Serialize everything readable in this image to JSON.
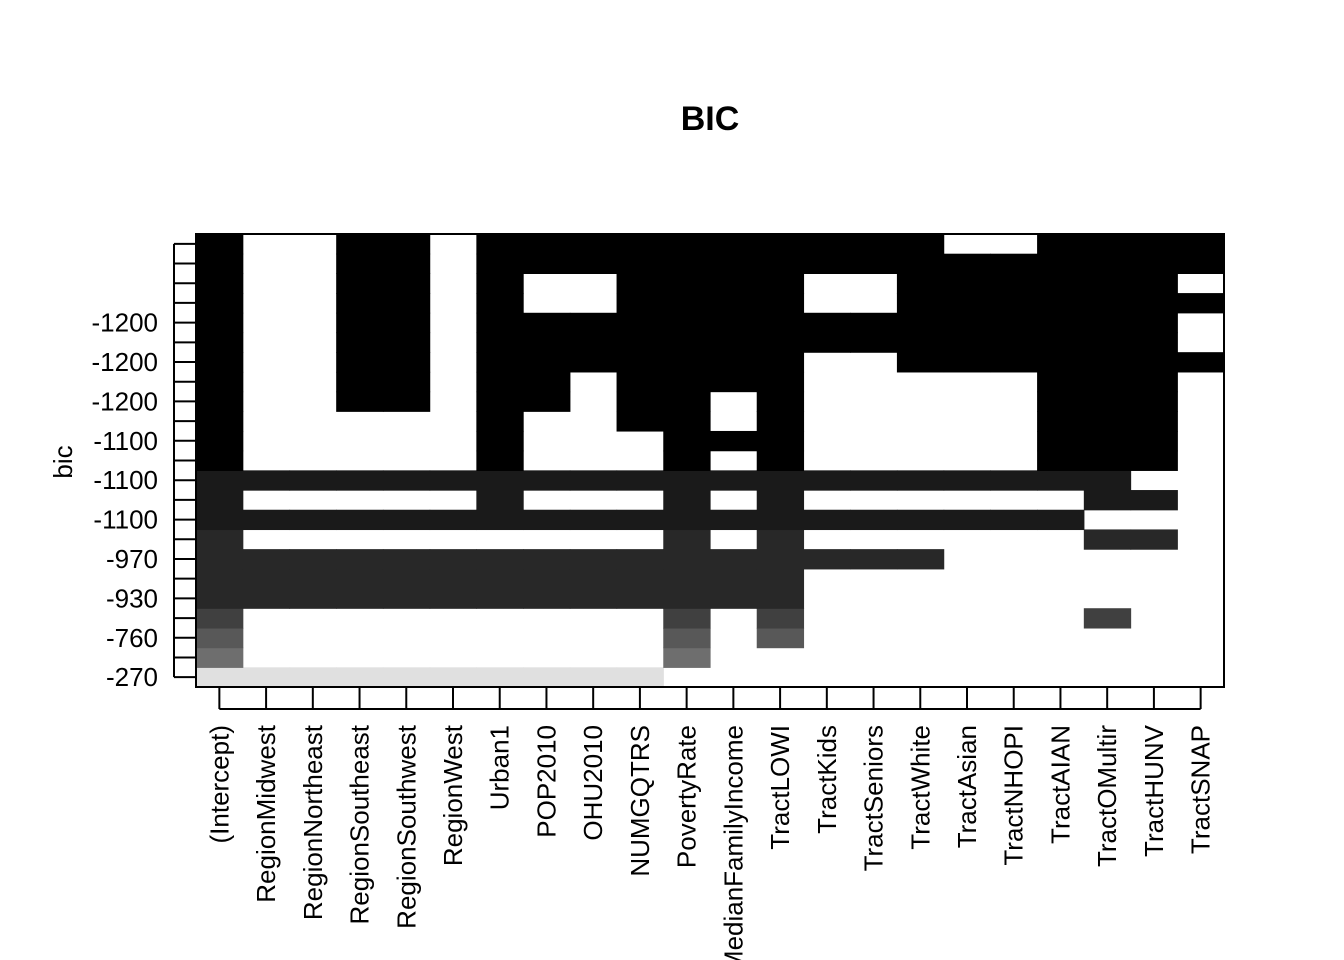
{
  "chart_data": {
    "type": "heatmap",
    "title": "BIC",
    "ylabel": "bic",
    "xlabel": "",
    "variables": [
      "(Intercept)",
      "RegionMidwest",
      "RegionNortheast",
      "RegionSoutheast",
      "RegionSouthwest",
      "RegionWest",
      "Urban1",
      "POP2010",
      "OHU2010",
      "NUMGQTRS",
      "PovertyRate",
      "MedianFamilyIncome",
      "TractLOWI",
      "TractKids",
      "TractSeniors",
      "TractWhite",
      "TractAsian",
      "TractNHOPI",
      "TractAIAN",
      "TractOMultir",
      "TractHUNV",
      "TractSNAP"
    ],
    "bic_axis_labels": [
      "-270",
      "-760",
      "-930",
      "-970",
      "-1100",
      "-1100",
      "-1100",
      "-1200",
      "-1200",
      "-1200"
    ],
    "shade_colors": [
      "#e0e0e0",
      "#6e6e6e",
      "#585858",
      "#404040",
      "#282828",
      "#1a1a1a",
      "#000000"
    ],
    "models": [
      {
        "row_start": 0,
        "row_end": 1,
        "shade": 0,
        "vars": [
          0,
          1,
          2,
          3,
          4,
          5,
          6,
          7,
          8,
          9
        ]
      },
      {
        "row_start": 1,
        "row_end": 2,
        "shade": 1,
        "vars": [
          0,
          10
        ]
      },
      {
        "row_start": 2,
        "row_end": 3,
        "shade": 2,
        "vars": [
          0,
          10,
          12
        ]
      },
      {
        "row_start": 3,
        "row_end": 4,
        "shade": 3,
        "vars": [
          0,
          10,
          12,
          19
        ]
      },
      {
        "row_start": 4,
        "row_end": 6,
        "shade": 4,
        "vars": [
          0,
          1,
          2,
          3,
          4,
          5,
          6,
          7,
          8,
          9,
          10,
          11,
          12
        ]
      },
      {
        "row_start": 6,
        "row_end": 7,
        "shade": 4,
        "vars": [
          0,
          1,
          2,
          3,
          4,
          5,
          6,
          7,
          8,
          9,
          10,
          11,
          12,
          13,
          14,
          15
        ]
      },
      {
        "row_start": 7,
        "row_end": 8,
        "shade": 4,
        "vars": [
          0,
          10,
          12,
          19,
          20
        ]
      },
      {
        "row_start": 8,
        "row_end": 9,
        "shade": 5,
        "vars": [
          0,
          1,
          2,
          3,
          4,
          5,
          6,
          7,
          8,
          9,
          10,
          11,
          12,
          13,
          14,
          15,
          16,
          17,
          18
        ]
      },
      {
        "row_start": 9,
        "row_end": 10,
        "shade": 5,
        "vars": [
          0,
          6,
          10,
          12,
          19,
          20
        ]
      },
      {
        "row_start": 10,
        "row_end": 11,
        "shade": 5,
        "vars": [
          0,
          1,
          2,
          3,
          4,
          5,
          6,
          7,
          8,
          9,
          10,
          11,
          12,
          13,
          14,
          15,
          16,
          17,
          18,
          19
        ]
      },
      {
        "row_start": 11,
        "row_end": 12,
        "shade": 6,
        "vars": [
          0,
          6,
          10,
          12,
          18,
          19,
          20
        ]
      },
      {
        "row_start": 12,
        "row_end": 13,
        "shade": 6,
        "vars": [
          0,
          6,
          10,
          11,
          12,
          18,
          19,
          20
        ]
      },
      {
        "row_start": 13,
        "row_end": 14,
        "shade": 6,
        "vars": [
          0,
          6,
          9,
          10,
          12,
          18,
          19,
          20
        ]
      },
      {
        "row_start": 14,
        "row_end": 15,
        "shade": 6,
        "vars": [
          0,
          3,
          4,
          6,
          7,
          9,
          10,
          12,
          18,
          19,
          20
        ]
      },
      {
        "row_start": 15,
        "row_end": 16,
        "shade": 6,
        "vars": [
          0,
          3,
          4,
          6,
          7,
          9,
          10,
          11,
          12,
          18,
          19,
          20
        ]
      },
      {
        "row_start": 16,
        "row_end": 17,
        "shade": 6,
        "vars": [
          0,
          3,
          4,
          6,
          7,
          8,
          9,
          10,
          11,
          12,
          15,
          16,
          17,
          18,
          19,
          20,
          21
        ]
      },
      {
        "row_start": 17,
        "row_end": 18,
        "shade": 6,
        "vars": [
          0,
          3,
          4,
          6,
          7,
          8,
          9,
          10,
          11,
          12,
          13,
          14,
          15,
          16,
          17,
          18,
          19,
          20
        ]
      },
      {
        "row_start": 18,
        "row_end": 19,
        "shade": 6,
        "vars": [
          0,
          3,
          4,
          6,
          7,
          8,
          9,
          10,
          11,
          12,
          13,
          14,
          15,
          16,
          17,
          18,
          19,
          20
        ]
      },
      {
        "row_start": 19,
        "row_end": 20,
        "shade": 6,
        "vars": [
          0,
          3,
          4,
          6,
          9,
          10,
          11,
          12,
          15,
          16,
          17,
          18,
          19,
          20,
          21
        ]
      },
      {
        "row_start": 20,
        "row_end": 21,
        "shade": 6,
        "vars": [
          0,
          3,
          4,
          6,
          9,
          10,
          11,
          12,
          15,
          16,
          17,
          18,
          19,
          20
        ]
      },
      {
        "row_start": 21,
        "row_end": 22,
        "shade": 6,
        "vars": [
          0,
          3,
          4,
          6,
          7,
          8,
          9,
          10,
          11,
          12,
          13,
          14,
          15,
          16,
          17,
          18,
          19,
          20,
          21
        ]
      },
      {
        "row_start": 22,
        "row_end": 23,
        "shade": 6,
        "vars": [
          0,
          3,
          4,
          6,
          7,
          8,
          9,
          10,
          11,
          12,
          13,
          14,
          15,
          18,
          19,
          20,
          21
        ]
      }
    ],
    "grid": false,
    "legend": "none"
  }
}
